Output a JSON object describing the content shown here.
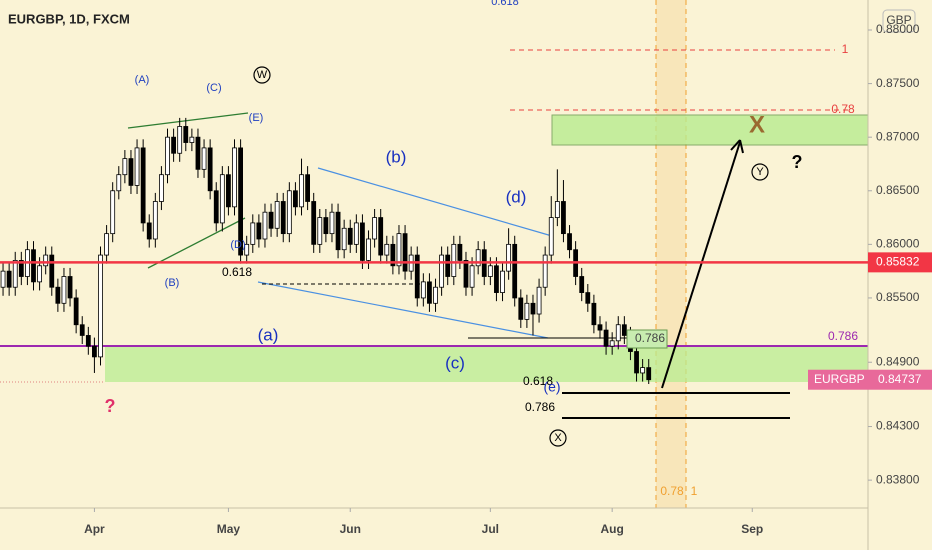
{
  "header": {
    "title": "EURGBP, 1D, FXCM",
    "currency": "GBP"
  },
  "chart_data": {
    "type": "candlestick",
    "name": "EURGBP",
    "xlim": [
      -0.5,
      142
    ],
    "xticks": [
      {
        "value": 15,
        "label": "Apr"
      },
      {
        "value": 37,
        "label": "May"
      },
      {
        "value": 57,
        "label": "Jun"
      },
      {
        "value": 80,
        "label": "Jul"
      },
      {
        "value": 100,
        "label": "Aug"
      },
      {
        "value": 123,
        "label": "Sep"
      }
    ],
    "ylim": [
      0.8354,
      0.8828
    ],
    "yticks": [
      {
        "value": 0.88,
        "label": "0.88000"
      },
      {
        "value": 0.875,
        "label": "0.87500"
      },
      {
        "value": 0.87,
        "label": "0.87000"
      },
      {
        "value": 0.865,
        "label": "0.86500"
      },
      {
        "value": 0.86,
        "label": "0.86000"
      },
      {
        "value": 0.855,
        "label": "0.85500"
      },
      {
        "value": 0.849,
        "label": "0.84900"
      },
      {
        "value": 0.843,
        "label": "0.84300"
      },
      {
        "value": 0.838,
        "label": "0.83800"
      }
    ],
    "x": [
      0,
      1,
      2,
      3,
      4,
      5,
      6,
      7,
      8,
      9,
      10,
      11,
      12,
      13,
      14,
      15,
      16,
      17,
      18,
      19,
      20,
      21,
      22,
      23,
      24,
      25,
      26,
      27,
      28,
      29,
      30,
      31,
      32,
      33,
      34,
      35,
      36,
      37,
      38,
      39,
      40,
      41,
      42,
      43,
      44,
      45,
      46,
      47,
      48,
      49,
      50,
      51,
      52,
      53,
      54,
      55,
      56,
      57,
      58,
      59,
      60,
      61,
      62,
      63,
      64,
      65,
      66,
      67,
      68,
      69,
      70,
      71,
      72,
      73,
      74,
      75,
      76,
      77,
      78,
      79,
      80,
      81,
      82,
      83,
      84,
      85,
      86,
      87,
      88,
      89,
      90,
      91,
      92,
      93,
      94,
      95,
      96,
      97,
      98,
      99,
      100,
      101,
      102,
      103,
      104,
      105,
      106
    ],
    "open": [
      0.856,
      0.8575,
      0.856,
      0.8585,
      0.857,
      0.8595,
      0.8565,
      0.858,
      0.859,
      0.856,
      0.8545,
      0.857,
      0.855,
      0.8525,
      0.8515,
      0.8505,
      0.8495,
      0.859,
      0.861,
      0.865,
      0.8665,
      0.868,
      0.8655,
      0.869,
      0.862,
      0.8605,
      0.864,
      0.8665,
      0.87,
      0.8685,
      0.871,
      0.8695,
      0.87,
      0.867,
      0.869,
      0.865,
      0.862,
      0.8665,
      0.8635,
      0.869,
      0.859,
      0.86,
      0.862,
      0.8605,
      0.863,
      0.8615,
      0.864,
      0.861,
      0.865,
      0.8635,
      0.8665,
      0.864,
      0.86,
      0.8625,
      0.861,
      0.863,
      0.8595,
      0.8615,
      0.86,
      0.862,
      0.8585,
      0.8605,
      0.8625,
      0.859,
      0.86,
      0.858,
      0.861,
      0.8575,
      0.859,
      0.855,
      0.8565,
      0.8545,
      0.856,
      0.859,
      0.857,
      0.86,
      0.8585,
      0.856,
      0.858,
      0.8595,
      0.857,
      0.858,
      0.8555,
      0.8575,
      0.86,
      0.855,
      0.853,
      0.8545,
      0.8535,
      0.856,
      0.859,
      0.8625,
      0.864,
      0.861,
      0.8595,
      0.857,
      0.8555,
      0.8545,
      0.8525,
      0.852,
      0.8505,
      0.851,
      0.8525,
      0.8515,
      0.85,
      0.848,
      0.8485
    ],
    "high": [
      0.8583,
      0.8583,
      0.8593,
      0.8593,
      0.8603,
      0.8603,
      0.8588,
      0.8598,
      0.8598,
      0.8568,
      0.8578,
      0.8578,
      0.8558,
      0.8533,
      0.8523,
      0.8513,
      0.8598,
      0.8618,
      0.8658,
      0.8673,
      0.8688,
      0.8688,
      0.8698,
      0.8698,
      0.8628,
      0.8648,
      0.8673,
      0.8708,
      0.8708,
      0.8718,
      0.8718,
      0.8708,
      0.8708,
      0.8698,
      0.8698,
      0.8658,
      0.8673,
      0.8673,
      0.8698,
      0.8698,
      0.8608,
      0.8628,
      0.8628,
      0.8638,
      0.8638,
      0.8648,
      0.8648,
      0.8658,
      0.8658,
      0.868,
      0.8673,
      0.8648,
      0.8633,
      0.8633,
      0.8638,
      0.8638,
      0.8623,
      0.8623,
      0.8628,
      0.8628,
      0.8613,
      0.8633,
      0.8633,
      0.8608,
      0.8608,
      0.8618,
      0.8618,
      0.8598,
      0.8598,
      0.8573,
      0.8573,
      0.8568,
      0.8598,
      0.8598,
      0.8608,
      0.8608,
      0.8593,
      0.8588,
      0.8603,
      0.8603,
      0.8588,
      0.8588,
      0.8583,
      0.8615,
      0.8608,
      0.8558,
      0.8553,
      0.8553,
      0.8568,
      0.8598,
      0.8645,
      0.867,
      0.866,
      0.8618,
      0.8603,
      0.8578,
      0.8563,
      0.8553,
      0.8533,
      0.8528,
      0.8518,
      0.8533,
      0.8533,
      0.8523,
      0.8508,
      0.8493,
      0.8493
    ],
    "low": [
      0.8552,
      0.8552,
      0.8552,
      0.8562,
      0.8562,
      0.8557,
      0.8557,
      0.8572,
      0.8552,
      0.8537,
      0.8537,
      0.8542,
      0.8517,
      0.8507,
      0.8497,
      0.848,
      0.8487,
      0.8582,
      0.8602,
      0.8642,
      0.8657,
      0.8647,
      0.8647,
      0.8612,
      0.8597,
      0.8597,
      0.8632,
      0.8657,
      0.8677,
      0.8677,
      0.8687,
      0.8687,
      0.8662,
      0.8662,
      0.8642,
      0.8612,
      0.8612,
      0.8627,
      0.8627,
      0.8582,
      0.8582,
      0.8592,
      0.8597,
      0.8597,
      0.8607,
      0.8607,
      0.8602,
      0.8602,
      0.8627,
      0.8627,
      0.8632,
      0.8592,
      0.8592,
      0.8602,
      0.8602,
      0.8587,
      0.8587,
      0.8592,
      0.8592,
      0.8577,
      0.8577,
      0.8597,
      0.8582,
      0.8582,
      0.8572,
      0.8572,
      0.8567,
      0.8567,
      0.8542,
      0.8542,
      0.8537,
      0.8537,
      0.8552,
      0.8562,
      0.8562,
      0.8577,
      0.8552,
      0.8552,
      0.8572,
      0.8562,
      0.8562,
      0.8547,
      0.8547,
      0.8567,
      0.8542,
      0.8522,
      0.8522,
      0.8515,
      0.8527,
      0.8552,
      0.8582,
      0.8617,
      0.8602,
      0.8587,
      0.8562,
      0.8547,
      0.8537,
      0.8517,
      0.8512,
      0.8497,
      0.8497,
      0.8502,
      0.8507,
      0.8492,
      0.8472,
      0.8472,
      0.84697
    ],
    "close": [
      0.8575,
      0.856,
      0.8585,
      0.857,
      0.8595,
      0.8565,
      0.858,
      0.859,
      0.856,
      0.8545,
      0.857,
      0.855,
      0.8525,
      0.8515,
      0.8505,
      0.8495,
      0.859,
      0.861,
      0.865,
      0.8665,
      0.868,
      0.8655,
      0.869,
      0.862,
      0.8605,
      0.864,
      0.8665,
      0.87,
      0.8685,
      0.871,
      0.8695,
      0.87,
      0.867,
      0.869,
      0.865,
      0.862,
      0.8665,
      0.8635,
      0.869,
      0.859,
      0.86,
      0.862,
      0.8605,
      0.863,
      0.8615,
      0.864,
      0.861,
      0.865,
      0.8635,
      0.8665,
      0.864,
      0.86,
      0.8625,
      0.861,
      0.863,
      0.8595,
      0.8615,
      0.86,
      0.862,
      0.8585,
      0.8605,
      0.8625,
      0.859,
      0.86,
      0.858,
      0.861,
      0.8575,
      0.859,
      0.855,
      0.8565,
      0.8545,
      0.856,
      0.859,
      0.857,
      0.86,
      0.8585,
      0.856,
      0.858,
      0.8595,
      0.857,
      0.858,
      0.8555,
      0.8575,
      0.86,
      0.855,
      0.853,
      0.8545,
      0.8535,
      0.856,
      0.859,
      0.8625,
      0.864,
      0.861,
      0.8595,
      0.857,
      0.8555,
      0.8545,
      0.8525,
      0.852,
      0.8505,
      0.851,
      0.8525,
      0.8515,
      0.85,
      0.848,
      0.8485,
      0.84737
    ],
    "price_lines": [
      {
        "value": 0.85832,
        "color": "#f23645"
      },
      {
        "name": "EURGBP",
        "value": 0.84737,
        "color": "#e8699a"
      }
    ],
    "annotations": [
      "0.618",
      "1",
      "0.78",
      "(A)",
      "(C)",
      "W",
      "(E)",
      "(B)",
      "(D)",
      "(b)",
      "(d)",
      "0.618",
      "(a)",
      "(c)",
      "0.786",
      "0.786",
      "0.618",
      "(e)",
      "0.786",
      "X",
      "X",
      "Y",
      "?",
      "?",
      "0.78",
      "1"
    ]
  }
}
